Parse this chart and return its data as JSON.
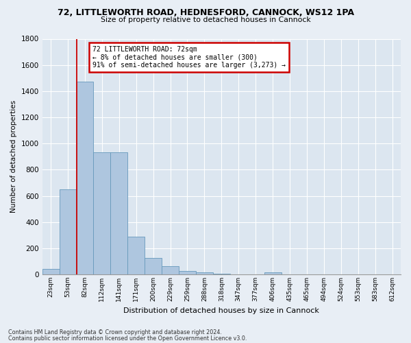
{
  "title_line1": "72, LITTLEWORTH ROAD, HEDNESFORD, CANNOCK, WS12 1PA",
  "title_line2": "Size of property relative to detached houses in Cannock",
  "xlabel": "Distribution of detached houses by size in Cannock",
  "ylabel": "Number of detached properties",
  "categories": [
    "23sqm",
    "53sqm",
    "82sqm",
    "112sqm",
    "141sqm",
    "171sqm",
    "200sqm",
    "229sqm",
    "259sqm",
    "288sqm",
    "318sqm",
    "347sqm",
    "377sqm",
    "406sqm",
    "435sqm",
    "465sqm",
    "494sqm",
    "524sqm",
    "553sqm",
    "583sqm",
    "612sqm"
  ],
  "values": [
    40,
    650,
    1470,
    935,
    935,
    290,
    125,
    65,
    25,
    15,
    5,
    0,
    0,
    15,
    0,
    0,
    0,
    0,
    0,
    0,
    0
  ],
  "bar_color": "#aec6df",
  "bar_edge_color": "#6699bb",
  "ylim": [
    0,
    1800
  ],
  "yticks": [
    0,
    200,
    400,
    600,
    800,
    1000,
    1200,
    1400,
    1600,
    1800
  ],
  "marker_label_line1": "72 LITTLEWORTH ROAD: 72sqm",
  "marker_label_line2": "← 8% of detached houses are smaller (300)",
  "marker_label_line3": "91% of semi-detached houses are larger (3,273) →",
  "footnote1": "Contains HM Land Registry data © Crown copyright and database right 2024.",
  "footnote2": "Contains public sector information licensed under the Open Government Licence v3.0.",
  "bg_color": "#e8eef5",
  "plot_bg_color": "#dce6f0",
  "grid_color": "#ffffff",
  "vline_color": "#cc0000",
  "annotation_box_color": "#cc0000"
}
